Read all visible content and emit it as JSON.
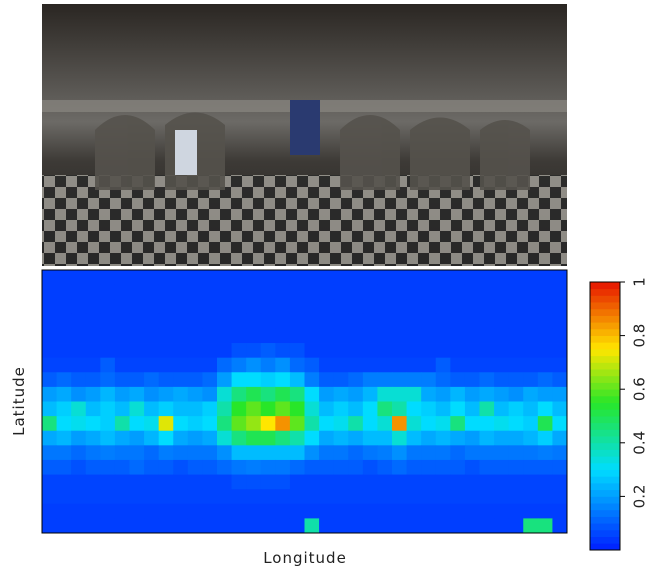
{
  "chart_data": {
    "type": "heatmap",
    "colormap": "jet",
    "xlabel": "Longitude",
    "ylabel": "Latitude",
    "clim": [
      0,
      1
    ],
    "cticks": [
      0.2,
      0.4,
      0.6,
      0.8,
      1
    ],
    "z": [
      [
        0.05,
        0.05,
        0.05,
        0.05,
        0.05,
        0.05,
        0.05,
        0.05,
        0.05,
        0.05,
        0.05,
        0.05,
        0.05,
        0.05,
        0.05,
        0.05,
        0.05,
        0.05,
        0.05,
        0.05,
        0.05,
        0.05,
        0.05,
        0.05,
        0.05,
        0.05,
        0.05,
        0.05,
        0.05,
        0.05,
        0.05,
        0.05,
        0.05,
        0.05,
        0.05,
        0.05
      ],
      [
        0.05,
        0.05,
        0.05,
        0.05,
        0.05,
        0.05,
        0.05,
        0.05,
        0.05,
        0.05,
        0.05,
        0.05,
        0.05,
        0.05,
        0.05,
        0.05,
        0.05,
        0.05,
        0.05,
        0.05,
        0.05,
        0.05,
        0.05,
        0.05,
        0.05,
        0.05,
        0.05,
        0.05,
        0.05,
        0.05,
        0.05,
        0.05,
        0.05,
        0.05,
        0.05,
        0.05
      ],
      [
        0.05,
        0.05,
        0.05,
        0.05,
        0.05,
        0.05,
        0.05,
        0.05,
        0.05,
        0.05,
        0.05,
        0.05,
        0.05,
        0.05,
        0.05,
        0.05,
        0.05,
        0.05,
        0.05,
        0.05,
        0.05,
        0.05,
        0.05,
        0.05,
        0.05,
        0.05,
        0.05,
        0.05,
        0.05,
        0.05,
        0.05,
        0.05,
        0.05,
        0.05,
        0.05,
        0.05
      ],
      [
        0.05,
        0.05,
        0.05,
        0.05,
        0.05,
        0.05,
        0.05,
        0.05,
        0.05,
        0.05,
        0.05,
        0.05,
        0.05,
        0.05,
        0.05,
        0.05,
        0.05,
        0.05,
        0.05,
        0.05,
        0.05,
        0.05,
        0.05,
        0.05,
        0.05,
        0.05,
        0.05,
        0.05,
        0.05,
        0.05,
        0.05,
        0.05,
        0.05,
        0.05,
        0.05,
        0.05
      ],
      [
        0.05,
        0.05,
        0.05,
        0.05,
        0.05,
        0.05,
        0.05,
        0.05,
        0.05,
        0.05,
        0.05,
        0.05,
        0.05,
        0.05,
        0.05,
        0.05,
        0.05,
        0.05,
        0.05,
        0.05,
        0.05,
        0.05,
        0.05,
        0.05,
        0.05,
        0.05,
        0.05,
        0.05,
        0.05,
        0.05,
        0.05,
        0.05,
        0.05,
        0.05,
        0.05,
        0.05
      ],
      [
        0.05,
        0.05,
        0.05,
        0.05,
        0.05,
        0.05,
        0.05,
        0.05,
        0.05,
        0.05,
        0.05,
        0.05,
        0.05,
        0.08,
        0.08,
        0.1,
        0.08,
        0.08,
        0.05,
        0.05,
        0.05,
        0.05,
        0.05,
        0.05,
        0.05,
        0.05,
        0.05,
        0.05,
        0.05,
        0.05,
        0.05,
        0.05,
        0.05,
        0.05,
        0.05,
        0.05
      ],
      [
        0.06,
        0.06,
        0.06,
        0.06,
        0.1,
        0.06,
        0.06,
        0.06,
        0.06,
        0.06,
        0.06,
        0.06,
        0.12,
        0.15,
        0.18,
        0.15,
        0.18,
        0.12,
        0.1,
        0.06,
        0.06,
        0.06,
        0.06,
        0.06,
        0.06,
        0.06,
        0.06,
        0.1,
        0.06,
        0.06,
        0.06,
        0.06,
        0.06,
        0.06,
        0.06,
        0.06
      ],
      [
        0.1,
        0.12,
        0.1,
        0.1,
        0.12,
        0.1,
        0.1,
        0.12,
        0.1,
        0.1,
        0.1,
        0.12,
        0.2,
        0.3,
        0.3,
        0.28,
        0.3,
        0.25,
        0.15,
        0.1,
        0.1,
        0.12,
        0.15,
        0.15,
        0.15,
        0.15,
        0.15,
        0.12,
        0.1,
        0.1,
        0.12,
        0.1,
        0.1,
        0.1,
        0.12,
        0.1
      ],
      [
        0.2,
        0.22,
        0.18,
        0.2,
        0.24,
        0.2,
        0.22,
        0.18,
        0.2,
        0.22,
        0.2,
        0.18,
        0.35,
        0.45,
        0.5,
        0.45,
        0.5,
        0.45,
        0.3,
        0.2,
        0.22,
        0.2,
        0.24,
        0.35,
        0.35,
        0.35,
        0.22,
        0.2,
        0.24,
        0.2,
        0.22,
        0.2,
        0.18,
        0.22,
        0.2,
        0.2
      ],
      [
        0.25,
        0.28,
        0.35,
        0.25,
        0.28,
        0.25,
        0.35,
        0.25,
        0.28,
        0.25,
        0.25,
        0.28,
        0.4,
        0.55,
        0.6,
        0.55,
        0.6,
        0.55,
        0.35,
        0.25,
        0.28,
        0.25,
        0.3,
        0.45,
        0.4,
        0.3,
        0.28,
        0.25,
        0.3,
        0.25,
        0.4,
        0.25,
        0.28,
        0.25,
        0.3,
        0.25
      ],
      [
        0.45,
        0.3,
        0.32,
        0.3,
        0.28,
        0.4,
        0.3,
        0.32,
        0.72,
        0.3,
        0.28,
        0.3,
        0.45,
        0.6,
        0.65,
        0.75,
        0.85,
        0.6,
        0.4,
        0.3,
        0.32,
        0.4,
        0.3,
        0.35,
        0.85,
        0.35,
        0.3,
        0.32,
        0.45,
        0.3,
        0.3,
        0.32,
        0.3,
        0.28,
        0.5,
        0.3
      ],
      [
        0.22,
        0.24,
        0.2,
        0.22,
        0.25,
        0.22,
        0.2,
        0.24,
        0.3,
        0.22,
        0.2,
        0.22,
        0.35,
        0.45,
        0.5,
        0.5,
        0.45,
        0.4,
        0.3,
        0.22,
        0.24,
        0.22,
        0.25,
        0.25,
        0.35,
        0.25,
        0.22,
        0.24,
        0.22,
        0.2,
        0.24,
        0.22,
        0.22,
        0.24,
        0.28,
        0.22
      ],
      [
        0.14,
        0.14,
        0.12,
        0.14,
        0.15,
        0.14,
        0.14,
        0.12,
        0.15,
        0.14,
        0.14,
        0.14,
        0.18,
        0.25,
        0.25,
        0.25,
        0.25,
        0.25,
        0.18,
        0.14,
        0.14,
        0.12,
        0.14,
        0.15,
        0.18,
        0.14,
        0.14,
        0.14,
        0.12,
        0.14,
        0.14,
        0.14,
        0.14,
        0.14,
        0.15,
        0.14
      ],
      [
        0.1,
        0.1,
        0.08,
        0.1,
        0.1,
        0.1,
        0.12,
        0.1,
        0.1,
        0.08,
        0.1,
        0.1,
        0.12,
        0.14,
        0.15,
        0.14,
        0.14,
        0.12,
        0.1,
        0.1,
        0.1,
        0.1,
        0.08,
        0.1,
        0.12,
        0.1,
        0.1,
        0.1,
        0.1,
        0.08,
        0.1,
        0.1,
        0.1,
        0.1,
        0.1,
        0.1
      ],
      [
        0.06,
        0.06,
        0.06,
        0.06,
        0.06,
        0.06,
        0.06,
        0.06,
        0.06,
        0.06,
        0.06,
        0.06,
        0.06,
        0.08,
        0.08,
        0.08,
        0.08,
        0.06,
        0.06,
        0.06,
        0.06,
        0.06,
        0.06,
        0.06,
        0.06,
        0.06,
        0.06,
        0.06,
        0.06,
        0.06,
        0.06,
        0.06,
        0.06,
        0.06,
        0.06,
        0.06
      ],
      [
        0.06,
        0.06,
        0.06,
        0.06,
        0.06,
        0.06,
        0.06,
        0.06,
        0.06,
        0.06,
        0.06,
        0.06,
        0.06,
        0.06,
        0.06,
        0.06,
        0.06,
        0.06,
        0.06,
        0.06,
        0.06,
        0.06,
        0.06,
        0.06,
        0.06,
        0.06,
        0.06,
        0.06,
        0.06,
        0.06,
        0.06,
        0.06,
        0.06,
        0.06,
        0.06,
        0.06
      ],
      [
        0.05,
        0.05,
        0.05,
        0.05,
        0.05,
        0.05,
        0.05,
        0.05,
        0.05,
        0.05,
        0.05,
        0.05,
        0.05,
        0.05,
        0.05,
        0.05,
        0.05,
        0.05,
        0.05,
        0.05,
        0.05,
        0.05,
        0.05,
        0.05,
        0.05,
        0.05,
        0.05,
        0.05,
        0.05,
        0.05,
        0.05,
        0.05,
        0.05,
        0.05,
        0.05,
        0.05
      ],
      [
        0.05,
        0.05,
        0.05,
        0.05,
        0.05,
        0.05,
        0.05,
        0.05,
        0.05,
        0.05,
        0.05,
        0.05,
        0.05,
        0.05,
        0.05,
        0.05,
        0.05,
        0.05,
        0.4,
        0.05,
        0.05,
        0.05,
        0.05,
        0.05,
        0.05,
        0.05,
        0.05,
        0.05,
        0.05,
        0.05,
        0.05,
        0.05,
        0.05,
        0.45,
        0.45,
        0.05
      ]
    ]
  }
}
